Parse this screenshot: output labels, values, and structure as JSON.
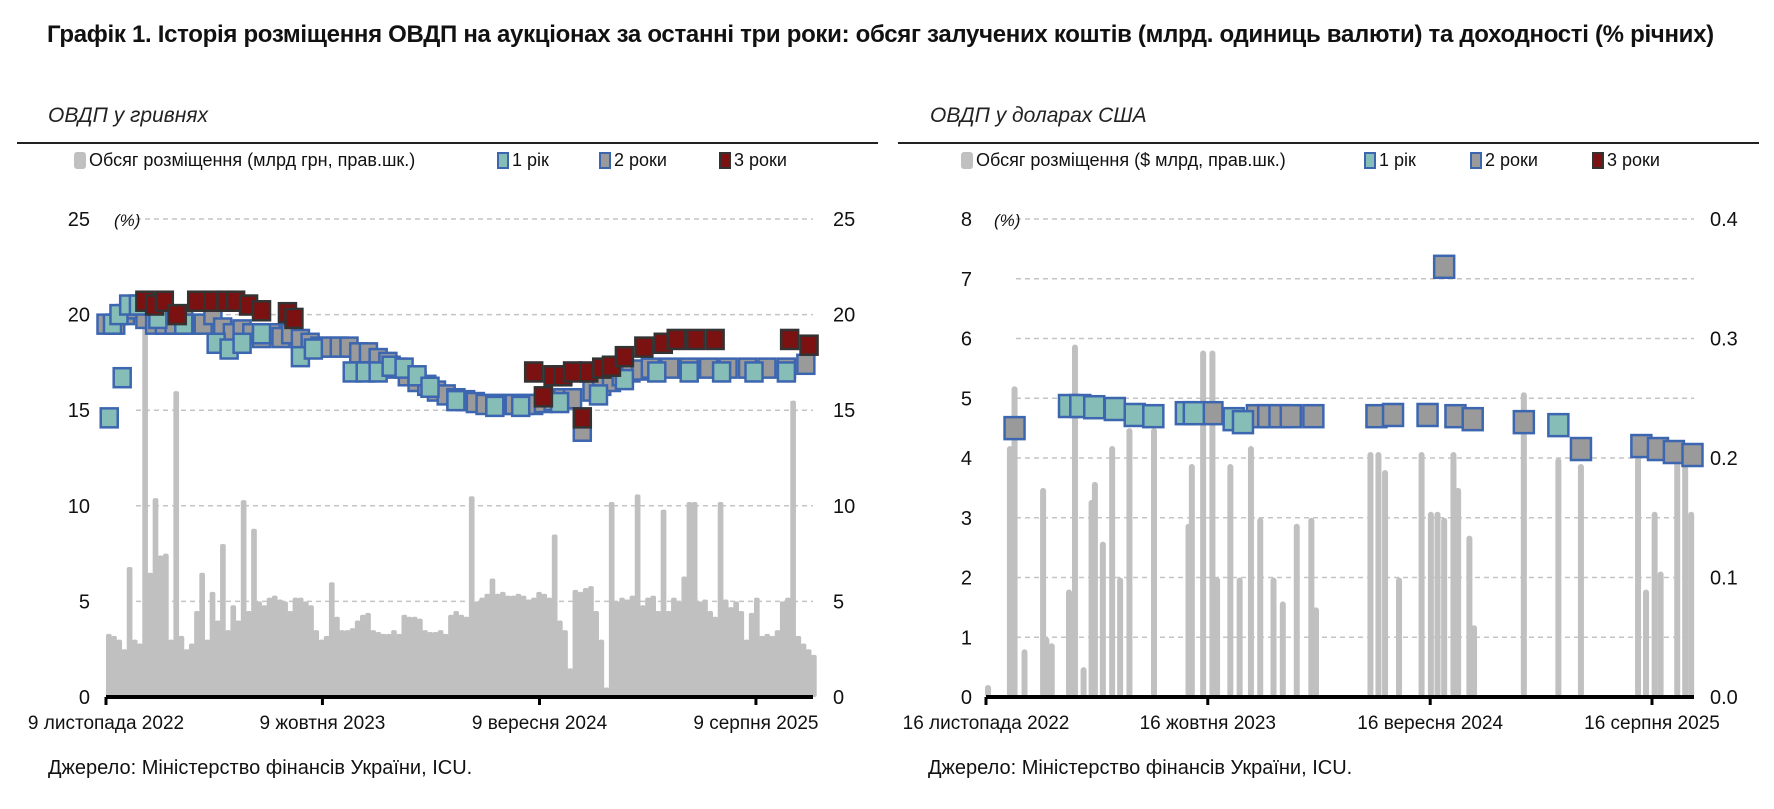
{
  "title": "Графік 1. Історія розміщення ОВДП на аукціонах за останні три роки: обсяг залучених коштів (млрд. одиниць валюти) та доходності (% річних)",
  "colors": {
    "bars": "#c0c0c0",
    "y1_fill": "#86bdb6",
    "y2_fill": "#9a9a9a",
    "y3_fill": "#7b1111",
    "marker_border": "#3d66b0",
    "y3_border": "#333333"
  },
  "chart_data": [
    {
      "type": "bar+scatter",
      "subtitle": "ОВДП у гривнях",
      "unit_label": "(%)",
      "source": "Джерело: Міністерство фінансів України, ICU.",
      "legend": [
        "Обсяг розміщення (млрд грн, прав.шк.)",
        "1 рік",
        "2 роки",
        "3 роки"
      ],
      "legend_position": "top",
      "grid": true,
      "x_unit": "days from first tick",
      "x_range": [
        0,
        1094
      ],
      "x_ticks": [
        {
          "day": 0,
          "label": "9 листопада 2022"
        },
        {
          "day": 334,
          "label": "9 жовтня 2023"
        },
        {
          "day": 669,
          "label": "9 вересня 2024"
        },
        {
          "day": 1003,
          "label": "9 серпня 2025"
        }
      ],
      "y_left": {
        "range": [
          0,
          25
        ],
        "ticks": [
          "0",
          "5",
          "10",
          "15",
          "20",
          "25"
        ]
      },
      "y_right": {
        "range": [
          0,
          25
        ],
        "ticks": [
          "0",
          "5",
          "10",
          "15",
          "20",
          "25"
        ]
      },
      "bars": {
        "name": "Обсяг розміщення (млрд грн, прав.шк.)",
        "step_days": 8,
        "values": [
          3.3,
          3.2,
          3,
          2.5,
          6.8,
          3,
          2.8,
          19.5,
          6.5,
          10.4,
          7.4,
          7.5,
          3,
          16,
          3.2,
          2.5,
          2.8,
          4.5,
          6.5,
          3,
          5.5,
          4,
          8,
          3.5,
          4.8,
          4,
          10.3,
          4.5,
          8.8,
          5,
          4.8,
          5.2,
          5.3,
          5.1,
          5,
          4.5,
          5.2,
          5.2,
          5,
          4.8,
          3.5,
          3,
          3.2,
          6,
          4.2,
          3.5,
          3.5,
          3.6,
          4,
          4.3,
          4.4,
          3.5,
          3.4,
          3.3,
          3.3,
          3.5,
          3.3,
          4.3,
          4.2,
          4.2,
          4.1,
          3.5,
          3.4,
          3.4,
          3.5,
          3.3,
          4.3,
          4.5,
          4.3,
          4.2,
          10.5,
          5,
          5.2,
          5.4,
          6.2,
          5.4,
          5.5,
          5.3,
          5.3,
          5.4,
          5.3,
          5.1,
          5.2,
          5.5,
          5.4,
          5.2,
          8.5,
          4,
          3.5,
          1.5,
          5.6,
          5.5,
          5.7,
          5.8,
          4.5,
          3,
          0.5,
          10.2,
          5,
          5.2,
          5.1,
          5.3,
          10.6,
          4.8,
          5.2,
          5.3,
          4.5,
          9.8,
          4.5,
          5.2,
          5,
          6.3,
          10.2,
          10.2,
          5,
          5.1,
          4.5,
          4.2,
          10.2,
          5.1,
          4.7,
          5,
          4.5,
          3,
          4.4,
          5.2,
          3.2,
          3.3,
          3.2,
          3.5,
          5,
          5.2,
          15.5,
          3.2,
          2.8,
          2.5,
          2.2
        ]
      },
      "series": [
        {
          "name": "1 рік",
          "points": [
            [
              5,
              14.6
            ],
            [
              25,
              16.7
            ],
            [
              10,
              19.5
            ],
            [
              20,
              20
            ],
            [
              35,
              20.5
            ],
            [
              50,
              20.5
            ],
            [
              80,
              19.8
            ],
            [
              120,
              19.5
            ],
            [
              170,
              18.5
            ],
            [
              190,
              18.2
            ],
            [
              210,
              18.5
            ],
            [
              240,
              19
            ],
            [
              300,
              17.8
            ],
            [
              320,
              18.2
            ],
            [
              380,
              17
            ],
            [
              400,
              17
            ],
            [
              420,
              17
            ],
            [
              440,
              17.3
            ],
            [
              460,
              17.2
            ],
            [
              480,
              16.8
            ],
            [
              500,
              16.2
            ],
            [
              540,
              15.5
            ],
            [
              600,
              15.2
            ],
            [
              640,
              15.2
            ],
            [
              700,
              15.4
            ],
            [
              760,
              15.8
            ],
            [
              800,
              16.6
            ],
            [
              850,
              17
            ],
            [
              900,
              17
            ],
            [
              950,
              17
            ],
            [
              1000,
              17
            ],
            [
              1050,
              17
            ]
          ]
        },
        {
          "name": "2 роки",
          "points": [
            [
              0,
              19.5
            ],
            [
              15,
              19.5
            ],
            [
              30,
              20
            ],
            [
              45,
              20.3
            ],
            [
              60,
              19.8
            ],
            [
              75,
              19.5
            ],
            [
              90,
              19.5
            ],
            [
              105,
              19.5
            ],
            [
              120,
              19.8
            ],
            [
              135,
              19.5
            ],
            [
              150,
              19.5
            ],
            [
              165,
              20
            ],
            [
              180,
              19.3
            ],
            [
              195,
              19
            ],
            [
              210,
              19.2
            ],
            [
              225,
              19
            ],
            [
              240,
              18.8
            ],
            [
              255,
              19
            ],
            [
              270,
              18.8
            ],
            [
              285,
              19
            ],
            [
              300,
              18.7
            ],
            [
              315,
              18.5
            ],
            [
              330,
              18.3
            ],
            [
              345,
              18.3
            ],
            [
              360,
              18.3
            ],
            [
              375,
              18.3
            ],
            [
              390,
              18
            ],
            [
              405,
              18
            ],
            [
              420,
              17.7
            ],
            [
              435,
              17.5
            ],
            [
              450,
              17.2
            ],
            [
              465,
              16.8
            ],
            [
              480,
              16.5
            ],
            [
              495,
              16.3
            ],
            [
              510,
              16
            ],
            [
              525,
              15.8
            ],
            [
              540,
              15.6
            ],
            [
              555,
              15.5
            ],
            [
              570,
              15.4
            ],
            [
              585,
              15.3
            ],
            [
              600,
              15.3
            ],
            [
              615,
              15.3
            ],
            [
              630,
              15.3
            ],
            [
              645,
              15.3
            ],
            [
              660,
              15.3
            ],
            [
              675,
              15.4
            ],
            [
              690,
              15.5
            ],
            [
              705,
              15.6
            ],
            [
              720,
              15.6
            ],
            [
              735,
              13.9
            ],
            [
              750,
              16
            ],
            [
              765,
              16.3
            ],
            [
              780,
              16.5
            ],
            [
              795,
              16.8
            ],
            [
              810,
              17
            ],
            [
              825,
              17.1
            ],
            [
              840,
              17.2
            ],
            [
              870,
              17.2
            ],
            [
              900,
              17.2
            ],
            [
              930,
              17.2
            ],
            [
              960,
              17.2
            ],
            [
              990,
              17.2
            ],
            [
              1020,
              17.2
            ],
            [
              1050,
              17.2
            ],
            [
              1080,
              17.4
            ]
          ]
        },
        {
          "name": "3 роки",
          "points": [
            [
              60,
              20.7
            ],
            [
              75,
              20.5
            ],
            [
              90,
              20.7
            ],
            [
              110,
              20
            ],
            [
              140,
              20.7
            ],
            [
              165,
              20.7
            ],
            [
              185,
              20.7
            ],
            [
              200,
              20.7
            ],
            [
              220,
              20.5
            ],
            [
              240,
              20.2
            ],
            [
              280,
              20.1
            ],
            [
              290,
              19.8
            ],
            [
              660,
              17
            ],
            [
              675,
              15.7
            ],
            [
              690,
              16.8
            ],
            [
              705,
              16.8
            ],
            [
              720,
              17
            ],
            [
              735,
              14.6
            ],
            [
              745,
              17
            ],
            [
              765,
              17.2
            ],
            [
              780,
              17.3
            ],
            [
              800,
              17.8
            ],
            [
              830,
              18.3
            ],
            [
              860,
              18.5
            ],
            [
              880,
              18.7
            ],
            [
              910,
              18.7
            ],
            [
              940,
              18.7
            ],
            [
              1055,
              18.7
            ],
            [
              1085,
              18.4
            ]
          ]
        }
      ]
    },
    {
      "type": "bar+scatter",
      "subtitle": "ОВДП у доларах США",
      "unit_label": "(%)",
      "source": "Джерело: Міністерство фінансів України, ICU.",
      "legend": [
        "Обсяг розміщення ($ млрд, прав.шк.)",
        "1 рік",
        "2 роки",
        "3 роки"
      ],
      "legend_position": "top",
      "grid": true,
      "x_unit": "days from first tick",
      "x_range": [
        0,
        1066
      ],
      "x_ticks": [
        {
          "day": 0,
          "label": "16 листопада 2022"
        },
        {
          "day": 334,
          "label": "16 жовтня 2023"
        },
        {
          "day": 669,
          "label": "16 вересня 2024"
        },
        {
          "day": 1003,
          "label": "16 серпня 2025"
        }
      ],
      "y_left": {
        "range": [
          0,
          8
        ],
        "ticks": [
          "0",
          "1",
          "2",
          "3",
          "4",
          "5",
          "6",
          "7",
          "8"
        ]
      },
      "y_right": {
        "range": [
          0,
          0.4
        ],
        "ticks": [
          "0.0",
          "0.1",
          "0.2",
          "0.3",
          "0.4"
        ]
      },
      "bars": {
        "name": "Обсяг розміщення ($ млрд, прав.шк.)",
        "points": [
          [
            3,
            0.01
          ],
          [
            36,
            0.21
          ],
          [
            43,
            0.26
          ],
          [
            58,
            0.04
          ],
          [
            86,
            0.175
          ],
          [
            91,
            0.05
          ],
          [
            99,
            0.045
          ],
          [
            125,
            0.09
          ],
          [
            134,
            0.295
          ],
          [
            147,
            0.025
          ],
          [
            159,
            0.165
          ],
          [
            164,
            0.18
          ],
          [
            176,
            0.13
          ],
          [
            190,
            0.21
          ],
          [
            202,
            0.1
          ],
          [
            216,
            0.225
          ],
          [
            253,
            0.225
          ],
          [
            305,
            0.145
          ],
          [
            310,
            0.195
          ],
          [
            327,
            0.29
          ],
          [
            341,
            0.29
          ],
          [
            348,
            0.1
          ],
          [
            368,
            0.195
          ],
          [
            382,
            0.1
          ],
          [
            399,
            0.21
          ],
          [
            413,
            0.15
          ],
          [
            433,
            0.1
          ],
          [
            447,
            0.08
          ],
          [
            468,
            0.145
          ],
          [
            490,
            0.15
          ],
          [
            497,
            0.075
          ],
          [
            579,
            0.205
          ],
          [
            591,
            0.205
          ],
          [
            601,
            0.19
          ],
          [
            622,
            0.1
          ],
          [
            656,
            0.205
          ],
          [
            670,
            0.155
          ],
          [
            680,
            0.155
          ],
          [
            690,
            0.15
          ],
          [
            704,
            0.205
          ],
          [
            711,
            0.175
          ],
          [
            728,
            0.135
          ],
          [
            735,
            0.06
          ],
          [
            810,
            0.255
          ],
          [
            862,
            0.2
          ],
          [
            896,
            0.195
          ],
          [
            982,
            0.205
          ],
          [
            994,
            0.09
          ],
          [
            1007,
            0.155
          ],
          [
            1016,
            0.105
          ],
          [
            1041,
            0.2
          ],
          [
            1053,
            0.2
          ],
          [
            1062,
            0.155
          ]
        ]
      },
      "series": [
        {
          "name": "1 рік",
          "points": [
            [
              125,
              4.87
            ],
            [
              142,
              4.87
            ],
            [
              163,
              4.85
            ],
            [
              194,
              4.82
            ],
            [
              224,
              4.72
            ],
            [
              252,
              4.7
            ],
            [
              301,
              4.75
            ],
            [
              313,
              4.75
            ],
            [
              373,
              4.65
            ],
            [
              387,
              4.6
            ],
            [
              862,
              4.55
            ]
          ]
        },
        {
          "name": "2 роки",
          "points": [
            [
              43,
              4.5
            ],
            [
              341,
              4.75
            ],
            [
              408,
              4.7
            ],
            [
              425,
              4.7
            ],
            [
              442,
              4.7
            ],
            [
              459,
              4.7
            ],
            [
              493,
              4.7
            ],
            [
              588,
              4.7
            ],
            [
              613,
              4.72
            ],
            [
              665,
              4.72
            ],
            [
              690,
              7.2
            ],
            [
              707,
              4.7
            ],
            [
              733,
              4.65
            ],
            [
              810,
              4.6
            ],
            [
              896,
              4.15
            ],
            [
              987,
              4.2
            ],
            [
              1012,
              4.15
            ],
            [
              1036,
              4.1
            ],
            [
              1064,
              4.05
            ]
          ]
        },
        {
          "name": "3 роки",
          "points": []
        }
      ]
    }
  ]
}
